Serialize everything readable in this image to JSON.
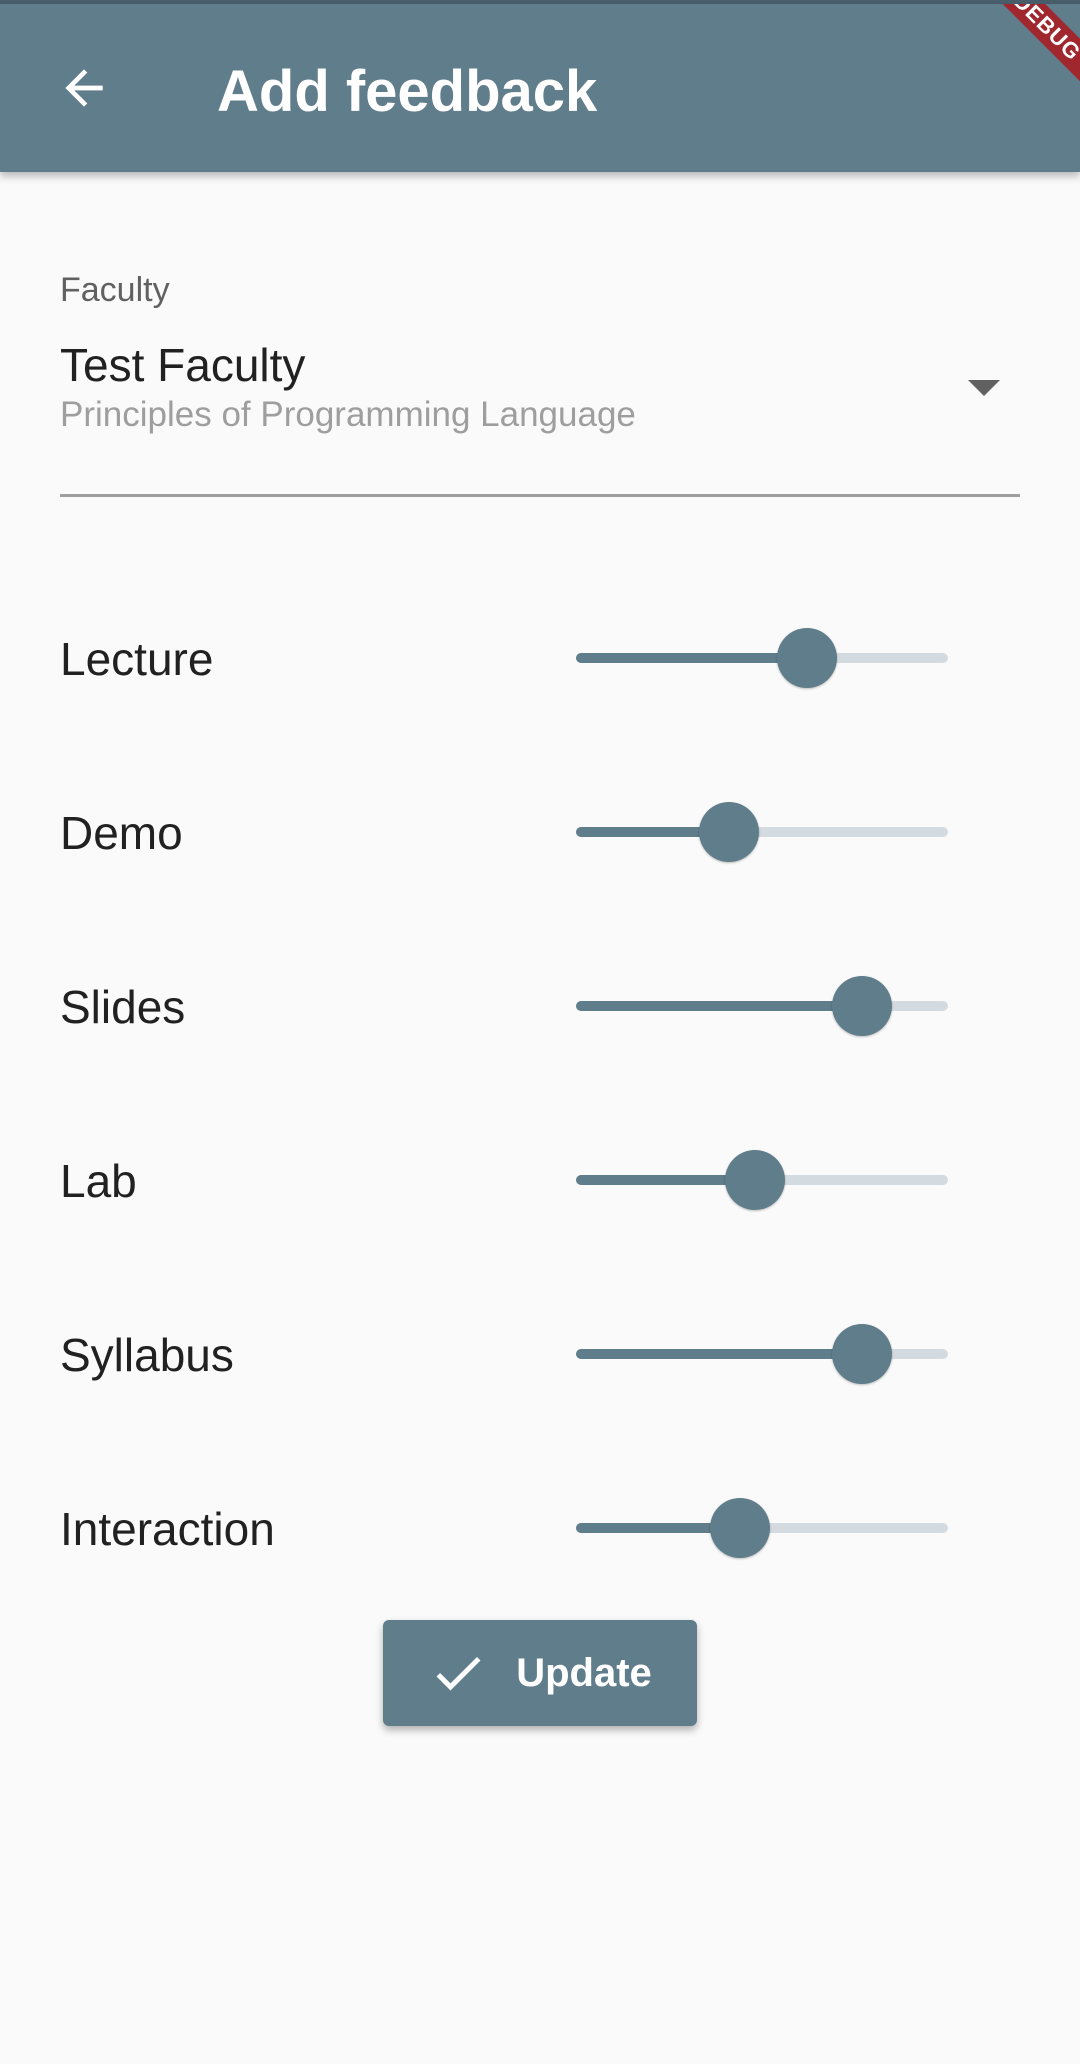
{
  "app_bar": {
    "title": "Add feedback",
    "back_icon": "arrow-back-icon",
    "debug_banner": "DEBUG",
    "color": "#607d8b"
  },
  "faculty_dropdown": {
    "label": "Faculty",
    "value": "Test Faculty",
    "subtitle": "Principles of Programming Language",
    "arrow_icon": "dropdown-arrow-icon"
  },
  "ratings": [
    {
      "label": "Lecture",
      "level": 0.62
    },
    {
      "label": "Demo",
      "level": 0.41
    },
    {
      "label": "Slides",
      "level": 0.77
    },
    {
      "label": "Lab",
      "level": 0.48
    },
    {
      "label": "Syllabus",
      "level": 0.77
    },
    {
      "label": "Interaction",
      "level": 0.44
    }
  ],
  "update_button": {
    "label": "Update",
    "icon": "check-icon"
  },
  "colors": {
    "accent": "#607d8b",
    "track_inactive": "#d3dbe0",
    "background": "#fafafa",
    "debug_banner": "#a0272d"
  }
}
